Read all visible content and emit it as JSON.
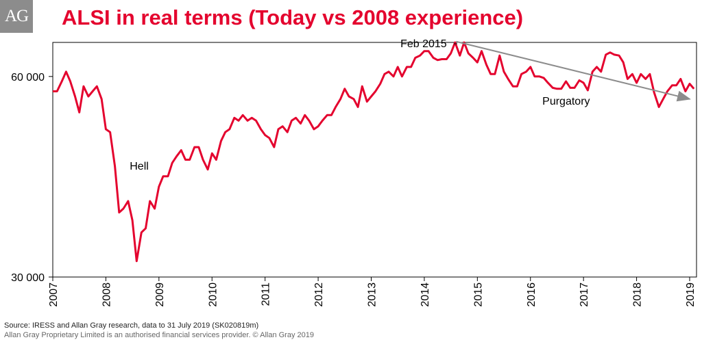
{
  "logo_text": "AG",
  "title": "ALSI in real terms (Today vs 2008 experience)",
  "source_line": "Source:  IRESS and Allan Gray research, data to 31 July 2019 (SK020819m)",
  "disclaimer_line": "Allan Gray Proprietary Limited is an authorised financial services provider. © Allan Gray 2019",
  "colors": {
    "series": "#e4032e",
    "arrow": "#8c8c8c",
    "text": "#000000"
  },
  "chart_data": {
    "type": "line",
    "title": "ALSI in real terms (Today vs 2008 experience)",
    "y_scale": "log",
    "ylim": [
      30000,
      67500
    ],
    "xlim": [
      2007.0,
      2019.1
    ],
    "yticks": [
      {
        "value": 30000,
        "label": "30 000"
      },
      {
        "value": 60000,
        "label": "60 000"
      }
    ],
    "xticks": [
      "2007",
      "2008",
      "2009",
      "2010",
      "2011",
      "2012",
      "2013",
      "2014",
      "2015",
      "2016",
      "2017",
      "2018",
      "2019"
    ],
    "grid": false,
    "series": [
      {
        "x": [
          2007.0,
          2007.08,
          2007.17,
          2007.25,
          2007.33,
          2007.42,
          2007.5,
          2007.58,
          2007.67,
          2007.75,
          2007.83,
          2007.92,
          2008.0,
          2008.08,
          2008.17,
          2008.25,
          2008.33,
          2008.42,
          2008.5,
          2008.58,
          2008.67,
          2008.75,
          2008.83,
          2008.92,
          2009.0,
          2009.08,
          2009.17,
          2009.25,
          2009.33,
          2009.42,
          2009.5,
          2009.58,
          2009.67,
          2009.75,
          2009.83,
          2009.92,
          2010.0,
          2010.08,
          2010.17,
          2010.25,
          2010.33,
          2010.42,
          2010.5,
          2010.58,
          2010.67,
          2010.75,
          2010.83,
          2010.92,
          2011.0,
          2011.08,
          2011.17,
          2011.25,
          2011.33,
          2011.42,
          2011.5,
          2011.58,
          2011.67,
          2011.75,
          2011.83,
          2011.92,
          2012.0,
          2012.08,
          2012.17,
          2012.25,
          2012.33,
          2012.42,
          2012.5,
          2012.58,
          2012.67,
          2012.75,
          2012.83,
          2012.92,
          2013.0,
          2013.08,
          2013.17,
          2013.25,
          2013.33,
          2013.42,
          2013.5,
          2013.58,
          2013.67,
          2013.75,
          2013.83,
          2013.92,
          2014.0,
          2014.08,
          2014.17,
          2014.25,
          2014.33,
          2014.42,
          2014.5,
          2014.58,
          2014.67,
          2014.75,
          2014.83,
          2014.92,
          2015.0,
          2015.08,
          2015.17,
          2015.25,
          2015.33,
          2015.42,
          2015.5,
          2015.58,
          2015.67,
          2015.75,
          2015.83,
          2015.92,
          2016.0,
          2016.08,
          2016.17,
          2016.25,
          2016.33,
          2016.42,
          2016.5,
          2016.58,
          2016.67,
          2016.75,
          2016.83,
          2016.92,
          2017.0,
          2017.08,
          2017.17,
          2017.25,
          2017.33,
          2017.42,
          2017.5,
          2017.58,
          2017.67,
          2017.75,
          2017.83,
          2017.92,
          2018.0,
          2018.08,
          2018.17,
          2018.25,
          2018.33,
          2018.42,
          2018.5,
          2018.58,
          2018.67,
          2018.75,
          2018.83,
          2018.92,
          2019.0,
          2019.08
        ],
        "values": [
          57000,
          57000,
          59000,
          61000,
          59000,
          56000,
          53000,
          58000,
          56000,
          57000,
          58000,
          55500,
          50000,
          49500,
          44000,
          37500,
          38000,
          39000,
          36500,
          31700,
          35000,
          35500,
          39000,
          38000,
          41000,
          42500,
          42500,
          44500,
          45500,
          46500,
          45000,
          45000,
          47000,
          47000,
          45000,
          43500,
          46000,
          45000,
          48000,
          49500,
          50000,
          52000,
          51500,
          52500,
          51500,
          52000,
          51500,
          50000,
          49000,
          48500,
          47000,
          50000,
          50500,
          49500,
          51500,
          52000,
          51000,
          52500,
          51500,
          50000,
          50500,
          51500,
          52500,
          52500,
          54000,
          55500,
          57500,
          56000,
          55500,
          54000,
          58000,
          55000,
          56000,
          57000,
          58500,
          60500,
          61000,
          60000,
          62000,
          60000,
          62000,
          62000,
          64000,
          64500,
          65500,
          65500,
          64000,
          63500,
          63700,
          63700,
          65000,
          67500,
          64500,
          67500,
          65000,
          64000,
          63000,
          65500,
          62500,
          60500,
          60500,
          64500,
          61000,
          59500,
          58000,
          58000,
          60500,
          61000,
          62000,
          60000,
          60000,
          59700,
          58700,
          57700,
          57500,
          57500,
          59000,
          57700,
          57700,
          59200,
          58700,
          57200,
          61000,
          62000,
          61000,
          64700,
          65200,
          64700,
          64500,
          63000,
          59500,
          60500,
          58700,
          60500,
          59500,
          60500,
          56800,
          54000,
          55500,
          57000,
          58200,
          58200,
          59500,
          57000,
          58500,
          57500
        ]
      }
    ],
    "annotations": [
      {
        "text": "Hell",
        "x": 2008.45,
        "y": 43500
      },
      {
        "text": "Feb 2015",
        "x": 2013.55,
        "y": 67500
      },
      {
        "text": "Purgatory",
        "x": 2017.0,
        "y": 55200
      }
    ],
    "trend_arrow": {
      "from": [
        2014.6,
        67700
      ],
      "to": [
        2019.0,
        55500
      ]
    }
  }
}
